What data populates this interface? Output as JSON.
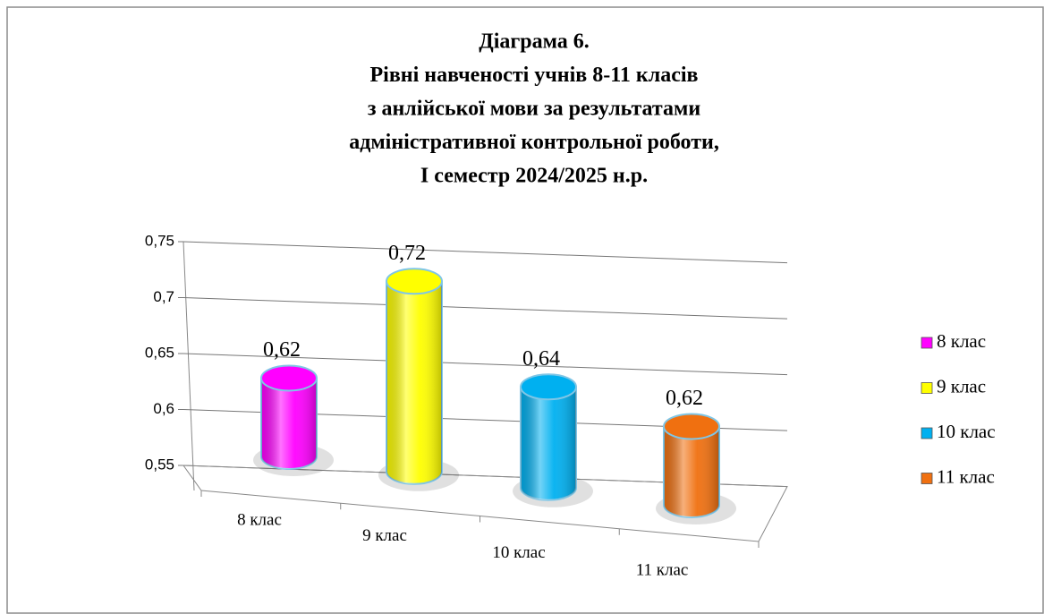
{
  "chart_data": {
    "type": "bar",
    "title": [
      "Діаграма 6.",
      "Рівні навченості учнів 8-11 класів",
      "з анлійської мови за результатами",
      "адміністративної контрольної роботи,",
      "І семестр 2024/2025 н.р."
    ],
    "categories": [
      "8 клас",
      "9 клас",
      "10 клас",
      "11 клас"
    ],
    "values": [
      0.62,
      0.72,
      0.64,
      0.62
    ],
    "value_labels": [
      "0,62",
      "0,72",
      "0,64",
      "0,62"
    ],
    "colors": [
      "#ff00ff",
      "#ffff00",
      "#00b0f0",
      "#f07010"
    ],
    "ylim": [
      0.55,
      0.75
    ],
    "yticks": [
      {
        "value": 0.55,
        "label": "0,55"
      },
      {
        "value": 0.6,
        "label": "0,6"
      },
      {
        "value": 0.65,
        "label": "0,65"
      },
      {
        "value": 0.7,
        "label": "0,7"
      },
      {
        "value": 0.75,
        "label": "0,75"
      }
    ],
    "grid": true,
    "legend": "right"
  }
}
